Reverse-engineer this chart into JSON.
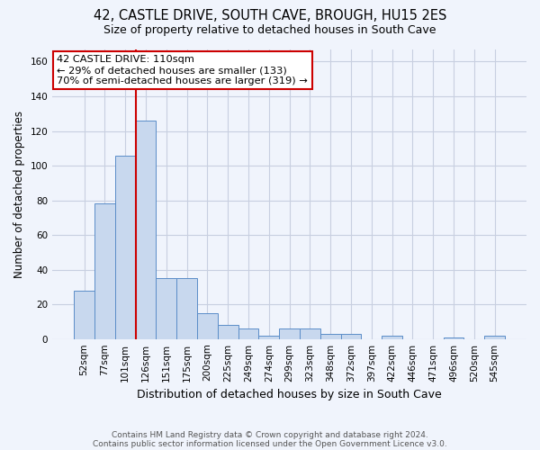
{
  "title_line1": "42, CASTLE DRIVE, SOUTH CAVE, BROUGH, HU15 2ES",
  "title_line2": "Size of property relative to detached houses in South Cave",
  "xlabel": "Distribution of detached houses by size in South Cave",
  "ylabel": "Number of detached properties",
  "categories": [
    "52sqm",
    "77sqm",
    "101sqm",
    "126sqm",
    "151sqm",
    "175sqm",
    "200sqm",
    "225sqm",
    "249sqm",
    "274sqm",
    "299sqm",
    "323sqm",
    "348sqm",
    "372sqm",
    "397sqm",
    "422sqm",
    "446sqm",
    "471sqm",
    "496sqm",
    "520sqm",
    "545sqm"
  ],
  "values": [
    28,
    78,
    106,
    126,
    35,
    35,
    15,
    8,
    6,
    2,
    6,
    6,
    3,
    3,
    0,
    2,
    0,
    0,
    1,
    0,
    2
  ],
  "bar_color": "#c8d8ee",
  "bar_edge_color": "#5b8dc8",
  "vline_color": "#cc0000",
  "vline_x_index": 2.5,
  "ylim": [
    0,
    167
  ],
  "yticks": [
    0,
    20,
    40,
    60,
    80,
    100,
    120,
    140,
    160
  ],
  "annotation_text_line1": "42 CASTLE DRIVE: 110sqm",
  "annotation_text_line2": "← 29% of detached houses are smaller (133)",
  "annotation_text_line3": "70% of semi-detached houses are larger (319) →",
  "annotation_box_color": "#ffffff",
  "annotation_box_edge": "#cc0000",
  "footer_line1": "Contains HM Land Registry data © Crown copyright and database right 2024.",
  "footer_line2": "Contains public sector information licensed under the Open Government Licence v3.0.",
  "background_color": "#f0f4fc",
  "grid_color": "#c8cfe0",
  "title1_fontsize": 10.5,
  "title2_fontsize": 9,
  "ylabel_fontsize": 8.5,
  "xlabel_fontsize": 9,
  "tick_fontsize": 7.5,
  "annotation_fontsize": 8.2,
  "footer_fontsize": 6.5
}
